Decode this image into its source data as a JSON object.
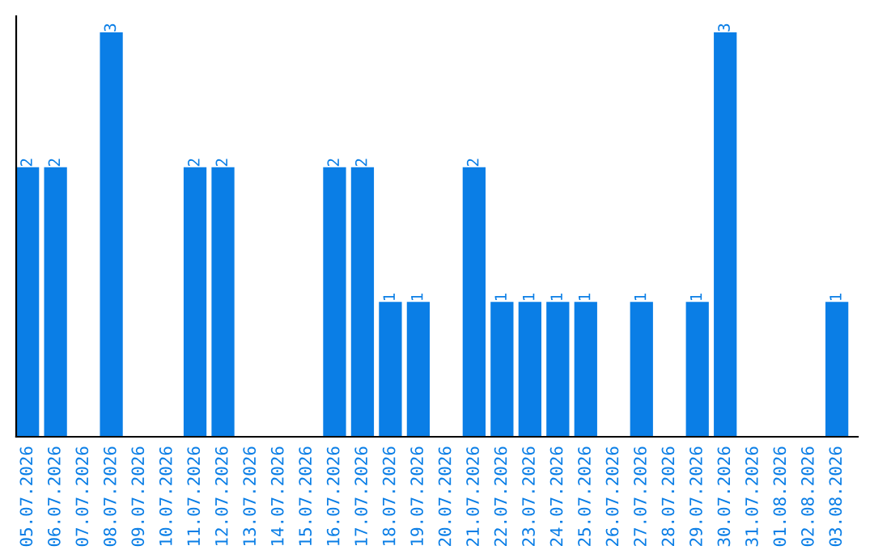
{
  "chart_data": {
    "type": "bar",
    "categories": [
      "05.07.2026",
      "06.07.2026",
      "07.07.2026",
      "08.07.2026",
      "09.07.2026",
      "10.07.2026",
      "11.07.2026",
      "12.07.2026",
      "13.07.2026",
      "14.07.2026",
      "15.07.2026",
      "16.07.2026",
      "17.07.2026",
      "18.07.2026",
      "19.07.2026",
      "20.07.2026",
      "21.07.2026",
      "22.07.2026",
      "23.07.2026",
      "24.07.2026",
      "25.07.2026",
      "26.07.2026",
      "27.07.2026",
      "28.07.2026",
      "29.07.2026",
      "30.07.2026",
      "31.07.2026",
      "01.08.2026",
      "02.08.2026",
      "03.08.2026"
    ],
    "values": [
      2,
      2,
      0,
      3,
      0,
      0,
      2,
      2,
      0,
      0,
      0,
      2,
      2,
      1,
      1,
      0,
      2,
      1,
      1,
      1,
      1,
      0,
      1,
      0,
      1,
      3,
      0,
      0,
      0,
      1
    ],
    "value_labels": [
      "2",
      "2",
      null,
      "3",
      null,
      null,
      "2",
      "2",
      null,
      null,
      null,
      "2",
      "2",
      "1",
      "1",
      null,
      "2",
      "1",
      "1",
      "1",
      "1",
      null,
      "1",
      null,
      "1",
      "3",
      null,
      null,
      null,
      "1"
    ],
    "color": "#0a7ee6",
    "grid": false,
    "legend": false
  }
}
